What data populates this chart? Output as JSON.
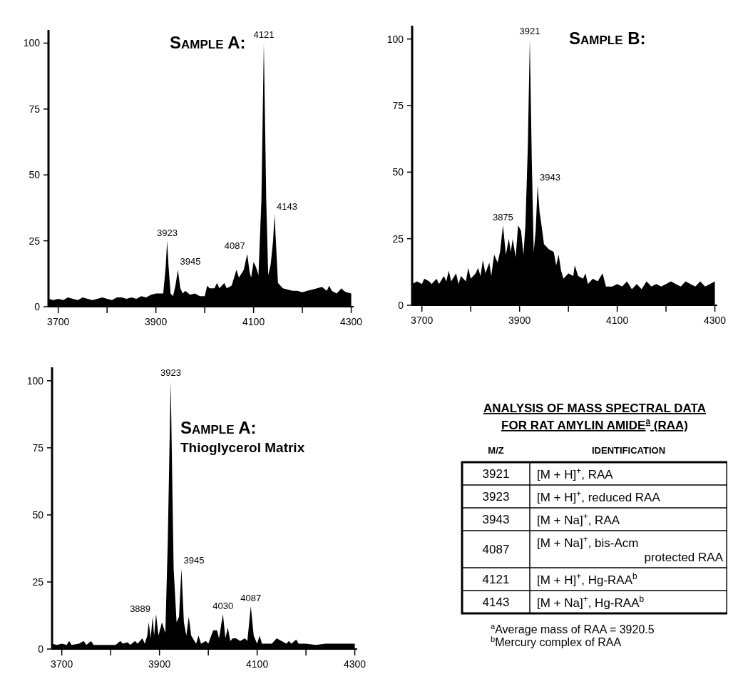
{
  "chart_data": [
    {
      "type": "area",
      "title": "Sample A:",
      "color": "#000000",
      "x": [
        3680,
        3690,
        3700,
        3710,
        3720,
        3730,
        3740,
        3750,
        3760,
        3770,
        3780,
        3790,
        3800,
        3810,
        3820,
        3830,
        3840,
        3850,
        3860,
        3870,
        3880,
        3890,
        3900,
        3910,
        3915,
        3920,
        3923,
        3926,
        3930,
        3935,
        3940,
        3945,
        3950,
        3955,
        3960,
        3970,
        3980,
        3990,
        4000,
        4005,
        4010,
        4020,
        4025,
        4030,
        4040,
        4045,
        4055,
        4065,
        4070,
        4080,
        4087,
        4092,
        4095,
        4100,
        4105,
        4110,
        4116,
        4121,
        4126,
        4130,
        4135,
        4140,
        4143,
        4147,
        4150,
        4160,
        4170,
        4180,
        4190,
        4200,
        4210,
        4220,
        4230,
        4240,
        4250,
        4255,
        4260,
        4270,
        4280,
        4285,
        4290,
        4300
      ],
      "values": [
        3,
        2.5,
        3,
        2.5,
        3.5,
        3,
        2.5,
        3.5,
        3,
        2.5,
        3,
        3.5,
        3,
        2.5,
        3.5,
        3.5,
        3,
        3.5,
        3,
        4,
        3.5,
        4.5,
        5,
        5,
        5,
        15,
        25,
        15,
        5,
        4,
        8,
        14,
        7,
        5,
        6,
        4.5,
        5,
        4,
        4,
        8,
        7,
        7,
        9,
        7,
        9,
        7,
        8,
        14,
        11,
        14,
        20,
        13,
        11,
        17,
        15,
        12,
        40,
        100,
        40,
        12,
        16,
        25,
        35,
        20,
        9,
        7,
        6.5,
        6,
        6,
        5.5,
        6,
        6.5,
        7,
        7.5,
        6,
        8,
        6,
        5,
        7,
        6,
        5.5,
        5
      ],
      "xlim": [
        3680,
        4305
      ],
      "ylim": [
        0,
        105
      ],
      "xticks": [
        3700,
        {
          "value": 3800,
          "label": null
        },
        3900,
        {
          "value": 4000,
          "label": null
        },
        4100,
        {
          "value": 4200,
          "label": null
        },
        4300
      ],
      "yticks": [
        0,
        25,
        50,
        75,
        100
      ],
      "annotations": [
        {
          "text": "3923",
          "x": 3923,
          "y": 25
        },
        {
          "text": "3945",
          "x": 3945,
          "y": 14
        },
        {
          "text": "4087",
          "x": 4087,
          "y": 20
        },
        {
          "text": "4121",
          "x": 4121,
          "y": 100
        },
        {
          "text": "4143",
          "x": 4143,
          "y": 35
        }
      ]
    },
    {
      "type": "area",
      "title": "Sample B:",
      "color": "#000000",
      "x": [
        3680,
        3690,
        3700,
        3705,
        3715,
        3720,
        3730,
        3735,
        3745,
        3750,
        3755,
        3760,
        3770,
        3775,
        3780,
        3790,
        3795,
        3800,
        3810,
        3815,
        3820,
        3825,
        3830,
        3838,
        3842,
        3848,
        3855,
        3860,
        3866,
        3872,
        3878,
        3882,
        3886,
        3892,
        3897,
        3903,
        3908,
        3912,
        3917,
        3921,
        3925,
        3929,
        3933,
        3937,
        3941,
        3945,
        3950,
        3960,
        3970,
        3975,
        3980,
        3985,
        3990,
        4000,
        4010,
        4013,
        4020,
        4030,
        4035,
        4040,
        4050,
        4060,
        4070,
        4077,
        4090,
        4100,
        4110,
        4120,
        4130,
        4140,
        4150,
        4160,
        4170,
        4180,
        4190,
        4200,
        4210,
        4220,
        4230,
        4240,
        4250,
        4260,
        4270,
        4280,
        4290,
        4300
      ],
      "values": [
        8,
        9,
        8,
        10,
        9,
        8,
        10,
        8,
        11,
        9,
        13,
        9,
        12,
        8,
        11,
        9,
        14,
        10,
        12,
        14,
        11,
        17,
        12,
        16,
        11,
        19,
        16,
        20,
        30,
        19,
        25,
        20,
        25,
        18,
        30,
        28,
        19,
        30,
        60,
        100,
        55,
        20,
        28,
        45,
        35,
        30,
        23,
        21,
        20,
        15,
        19,
        13,
        10,
        12,
        11,
        15,
        11,
        10,
        12,
        8,
        10,
        9,
        12,
        7,
        7,
        8,
        7,
        9,
        6,
        8,
        6,
        9,
        7,
        8,
        7,
        8,
        9,
        8,
        7,
        9,
        8,
        7,
        9,
        7,
        8,
        9
      ],
      "xlim": [
        3680,
        4305
      ],
      "ylim": [
        0,
        105
      ],
      "xticks": [
        3700,
        {
          "value": 3800,
          "label": null
        },
        3900,
        {
          "value": 4000,
          "label": null
        },
        4100,
        {
          "value": 4200,
          "label": null
        },
        4300
      ],
      "yticks": [
        0,
        25,
        50,
        75,
        100
      ],
      "annotations": [
        {
          "text": "3875",
          "x": 3866,
          "y": 30
        },
        {
          "text": "3921",
          "x": 3921,
          "y": 100
        },
        {
          "text": "3943",
          "x": 3937,
          "y": 45
        }
      ]
    },
    {
      "type": "area",
      "title": "Sample A:",
      "subtitle": "Thioglycerol Matrix",
      "color": "#000000",
      "x": [
        3680,
        3690,
        3700,
        3710,
        3715,
        3720,
        3735,
        3745,
        3750,
        3760,
        3765,
        3780,
        3800,
        3810,
        3820,
        3825,
        3835,
        3840,
        3850,
        3855,
        3865,
        3870,
        3875,
        3878,
        3882,
        3886,
        3889,
        3893,
        3898,
        3905,
        3912,
        3917,
        3923,
        3929,
        3935,
        3940,
        3945,
        3950,
        3955,
        3960,
        3965,
        3975,
        3980,
        3985,
        3995,
        4000,
        4010,
        4018,
        4022,
        4030,
        4035,
        4040,
        4045,
        4050,
        4057,
        4065,
        4075,
        4080,
        4087,
        4093,
        4100,
        4105,
        4110,
        4120,
        4130,
        4140,
        4150,
        4160,
        4165,
        4170,
        4180,
        4185,
        4200,
        4220,
        4240,
        4260,
        4280,
        4300
      ],
      "values": [
        2,
        1.5,
        2,
        1.5,
        3,
        1.5,
        2,
        3,
        1.5,
        3,
        1.5,
        1.5,
        1.5,
        1.5,
        3,
        2,
        2.5,
        1.5,
        3,
        2,
        4,
        2,
        5,
        10,
        4,
        12,
        5,
        13,
        5,
        10,
        6,
        40,
        100,
        30,
        10,
        12,
        30,
        10,
        5,
        12,
        5,
        2,
        5,
        2,
        3,
        2,
        7,
        7,
        4,
        13,
        4,
        8,
        3,
        4,
        4,
        3,
        4,
        3,
        16,
        5,
        2,
        5,
        2,
        2,
        2,
        4,
        3,
        2,
        3,
        2,
        3.5,
        2,
        2,
        1.5,
        2,
        2,
        2,
        2
      ],
      "xlim": [
        3680,
        4305
      ],
      "ylim": [
        0,
        105
      ],
      "xticks": [
        3700,
        {
          "value": 3800,
          "label": null
        },
        3900,
        {
          "value": 4000,
          "label": null
        },
        4100,
        {
          "value": 4200,
          "label": null
        },
        4300
      ],
      "yticks": [
        0,
        25,
        50,
        75,
        100
      ],
      "annotations": [
        {
          "text": "3889",
          "x": 3886,
          "y": 12
        },
        {
          "text": "3923",
          "x": 3923,
          "y": 100
        },
        {
          "text": "3945",
          "x": 3945,
          "y": 30
        },
        {
          "text": "4030",
          "x": 4030,
          "y": 13
        },
        {
          "text": "4087",
          "x": 4087,
          "y": 16
        }
      ]
    },
    {
      "type": "other",
      "title": "ANALYSIS OF MASS SPECTRAL DATA FOR RAT AMYLIN AMIDE$^{a}$ (RAA)",
      "categories": [
        "M/Z",
        "IDENTIFICATION"
      ],
      "y_categories": [
        "3921",
        "3923",
        "3943",
        "4087",
        "4121",
        "4143"
      ],
      "cell_labels": [
        [
          "[M + H]$^{+}$, RAA"
        ],
        [
          "[M + H]$^{+}$, reduced RAA"
        ],
        [
          "[M + Na]$^{+}$, RAA"
        ],
        [
          "[M + Na]$^{+}$, bis-Acm protected RAA"
        ],
        [
          "[M + H]$^{+}$, Hg-RAA$^{b}$"
        ],
        [
          "[M + Na]$^{+}$, Hg-RAA$^{b}$"
        ]
      ],
      "annotations": [
        "$^{a}$Average mass of RAA = 3920.5",
        "$^{b}$Mercury complex of RAA"
      ]
    }
  ]
}
